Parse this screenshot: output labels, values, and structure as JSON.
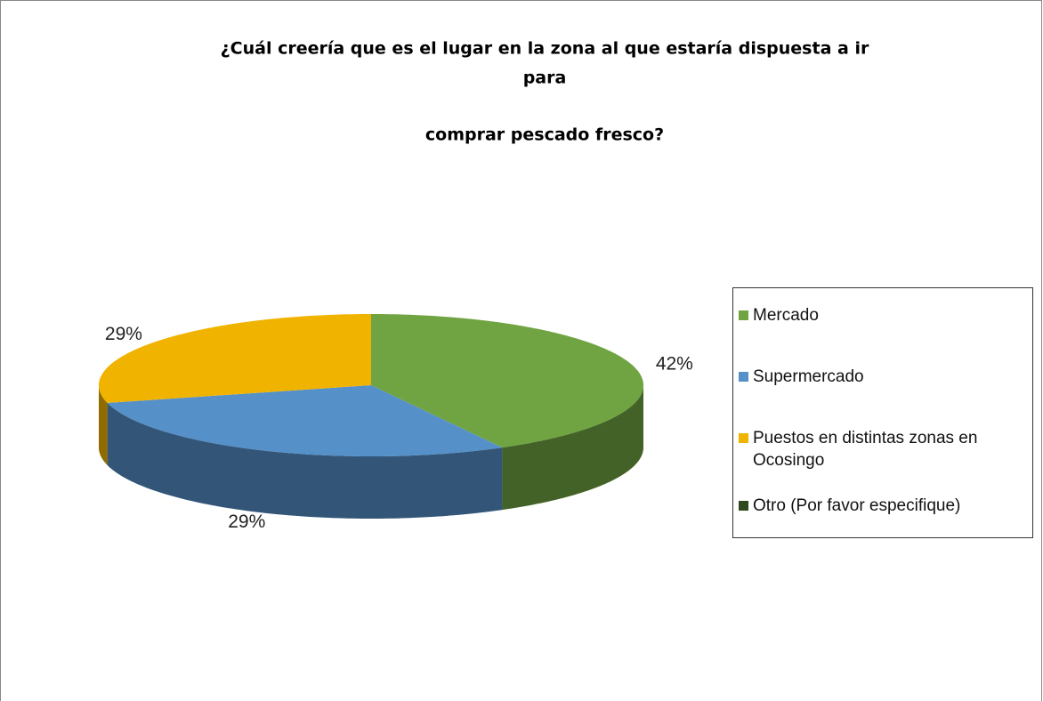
{
  "chart_data": {
    "type": "pie3d",
    "title": [
      "¿Cuál creería que es el lugar en la zona al que estaría dispuesta a ir",
      "para",
      "comprar pescado fresco?"
    ],
    "categories": [
      "Mercado",
      "Supermercado",
      "Puestos en distintas zonas en Ocosingo",
      "Otro (Por favor especifique)"
    ],
    "values": [
      42,
      29,
      29,
      0
    ],
    "value_labels": [
      "42%",
      "29%",
      "29%",
      null
    ],
    "colors": [
      "#70a442",
      "#5590c8",
      "#f0b400",
      "#2e4a1e"
    ],
    "legend": "right"
  }
}
